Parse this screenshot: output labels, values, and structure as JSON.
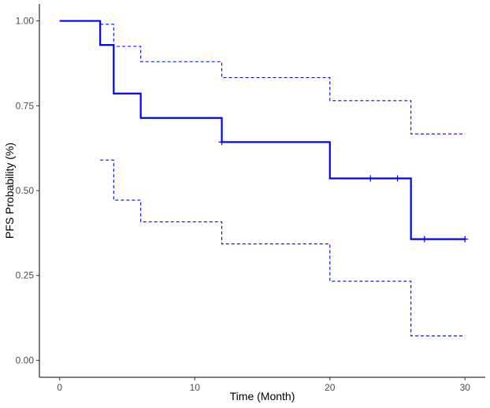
{
  "chart_data": {
    "type": "line",
    "title": "",
    "xlabel": "Time (Month)",
    "ylabel": "PFS Probability (%)",
    "xlim": [
      -1.5,
      31.5
    ],
    "ylim": [
      -0.05,
      1.05
    ],
    "xticks": [
      0,
      10,
      20,
      30
    ],
    "xtick_labels": [
      "0",
      "10",
      "20",
      "30"
    ],
    "yticks": [
      0,
      0.25,
      0.5,
      0.75,
      1
    ],
    "ytick_labels": [
      "0.00",
      "0.25",
      "0.50",
      "0.75",
      "1.00"
    ],
    "grid": false,
    "legend": "none",
    "series": [
      {
        "role": "estimate",
        "style": "solid",
        "color": "#0000ff",
        "step_times": [
          0,
          3,
          4,
          6,
          12,
          20,
          26,
          30
        ],
        "step_values": [
          1.0,
          0.929,
          0.786,
          0.714,
          0.643,
          0.536,
          0.357,
          0.357
        ]
      },
      {
        "role": "upper_ci",
        "style": "dashed",
        "color": "#0000ff",
        "step_times": [
          3,
          4,
          6,
          12,
          20,
          26,
          30
        ],
        "step_values": [
          0.99,
          0.925,
          0.88,
          0.833,
          0.765,
          0.667,
          0.667
        ]
      },
      {
        "role": "lower_ci",
        "style": "dashed",
        "color": "#0000ff",
        "step_times": [
          3,
          4,
          6,
          12,
          20,
          26,
          30
        ],
        "step_values": [
          0.59,
          0.472,
          0.408,
          0.343,
          0.233,
          0.072,
          0.072
        ]
      }
    ],
    "censor_marks": [
      {
        "x": 12,
        "y": 0.643
      },
      {
        "x": 23,
        "y": 0.536
      },
      {
        "x": 25,
        "y": 0.536
      },
      {
        "x": 27,
        "y": 0.357
      },
      {
        "x": 30,
        "y": 0.357
      }
    ]
  }
}
